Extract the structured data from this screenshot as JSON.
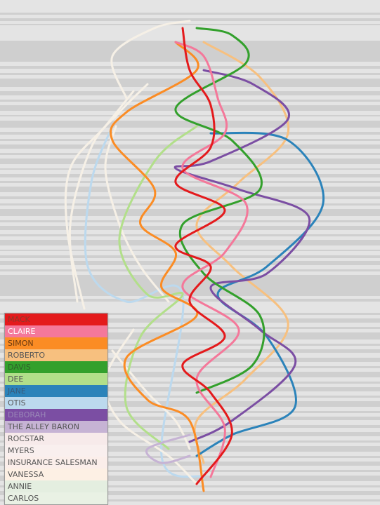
{
  "legend": {
    "items": [
      {
        "label": "MACK",
        "color": "#e41a1c",
        "text_color": "#8a3a2a"
      },
      {
        "label": "CLAIRE",
        "color": "#f4789a",
        "text_color": "#ffffff"
      },
      {
        "label": "SIMON",
        "color": "#fb8c24",
        "text_color": "#6a3a10"
      },
      {
        "label": "ROBERTO",
        "color": "#f7c07f",
        "text_color": "#555555"
      },
      {
        "label": "DAVIS",
        "color": "#33a02c",
        "text_color": "#2f5f2a"
      },
      {
        "label": "DEE",
        "color": "#b2df8a",
        "text_color": "#555555"
      },
      {
        "label": "JANE",
        "color": "#2b83ba",
        "text_color": "#3a5a7a"
      },
      {
        "label": "OTIS",
        "color": "#bcd9ee",
        "text_color": "#555555"
      },
      {
        "label": "DEBORAH",
        "color": "#7b4ea3",
        "text_color": "#9a88b8"
      },
      {
        "label": "THE ALLEY BARON",
        "color": "#c6b3d4",
        "text_color": "#555555"
      },
      {
        "label": "ROCSTAR",
        "color": "#f7eaea",
        "text_color": "#555555"
      },
      {
        "label": "MYERS",
        "color": "#f9efee",
        "text_color": "#555555"
      },
      {
        "label": "INSURANCE SALESMAN",
        "color": "#fbeeea",
        "text_color": "#555555"
      },
      {
        "label": "VANESSA",
        "color": "#fdf0e4",
        "text_color": "#555555"
      },
      {
        "label": "ANNIE",
        "color": "#e4eee0",
        "text_color": "#555555"
      },
      {
        "label": "CARLOS",
        "color": "#e9f1e4",
        "text_color": "#555555"
      }
    ]
  }
}
